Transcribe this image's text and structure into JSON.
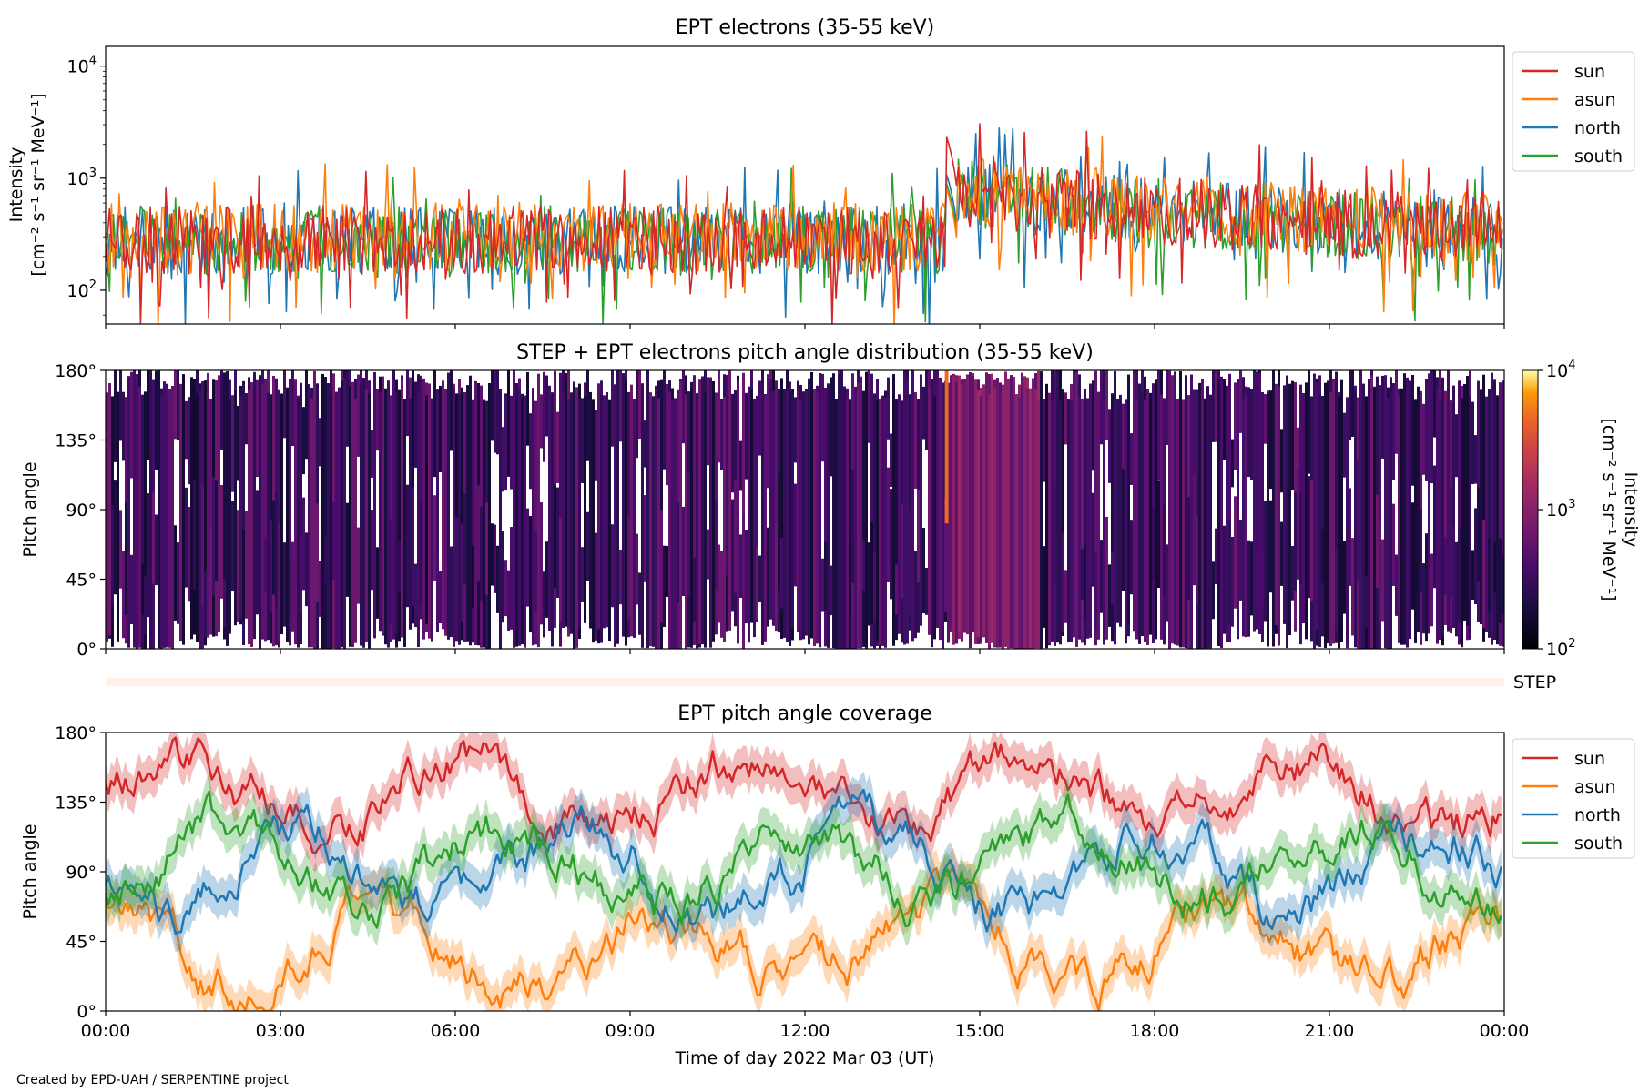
{
  "figure": {
    "footer": "Created by EPD-UAH / SERPENTINE project",
    "xlabel": "Time of day 2022 Mar 03 (UT)",
    "x_ticks": [
      "00:00",
      "03:00",
      "06:00",
      "09:00",
      "12:00",
      "15:00",
      "18:00",
      "21:00",
      "00:00"
    ]
  },
  "colors": {
    "sun": "#d62728",
    "asun": "#ff7f0e",
    "north": "#1f77b4",
    "south": "#2ca02c"
  },
  "chart_data": [
    {
      "type": "line",
      "title": "EPT electrons (35-55 keV)",
      "ylabel": "Intensity",
      "yunit": "[cm⁻² s⁻¹ sr⁻¹ MeV⁻¹]",
      "yscale": "log",
      "ylim": [
        50,
        15000
      ],
      "y_ticks": [
        100,
        1000,
        10000
      ],
      "y_tick_labels": {
        "base": "10",
        "exponents": [
          "2",
          "3",
          "4"
        ]
      },
      "xlim_hours": [
        0,
        24
      ],
      "legend": {
        "position": "outside-right",
        "entries": [
          "sun",
          "asun",
          "north",
          "south"
        ]
      },
      "series": [
        {
          "name": "sun",
          "baseline": 280,
          "spread": 0.28,
          "event": {
            "start_h": 14.4,
            "peak": 2600
          }
        },
        {
          "name": "asun",
          "baseline": 300,
          "spread": 0.28,
          "event": {
            "start_h": 14.4,
            "peak": 900
          }
        },
        {
          "name": "north",
          "baseline": 280,
          "spread": 0.28,
          "event": {
            "start_h": 14.4,
            "peak": 1200
          }
        },
        {
          "name": "south",
          "baseline": 280,
          "spread": 0.28,
          "event": {
            "start_h": 14.4,
            "peak": 1000
          }
        }
      ]
    },
    {
      "type": "heatmap",
      "title": "STEP + EPT electrons pitch angle distribution (35-55 keV)",
      "ylabel": "Pitch angle",
      "ylim": [
        0,
        180
      ],
      "y_ticks": [
        "0°",
        "45°",
        "90°",
        "135°",
        "180°"
      ],
      "colorbar": {
        "label": "Intensity",
        "unit": "[cm⁻² s⁻¹ sr⁻¹ MeV⁻¹]",
        "scale": "log",
        "range": [
          100,
          10000
        ],
        "tick_exponents": [
          "2",
          "3",
          "4"
        ],
        "colormap": "inferno"
      },
      "typical_intensity": 200,
      "event_intensity": {
        "start_h": 14.4,
        "end_h": 16.0,
        "value": 700
      },
      "xlim_hours": [
        0,
        24
      ]
    },
    {
      "type": "bar",
      "label": "STEP",
      "xlim_hours": [
        0,
        24
      ]
    },
    {
      "type": "line",
      "title": "EPT pitch angle coverage",
      "ylabel": "Pitch angle",
      "ylim": [
        0,
        180
      ],
      "y_ticks": [
        "0°",
        "45°",
        "90°",
        "135°",
        "180°"
      ],
      "xlim_hours": [
        0,
        24
      ],
      "legend": {
        "position": "outside-right",
        "entries": [
          "sun",
          "asun",
          "north",
          "south"
        ]
      },
      "series": [
        {
          "name": "sun",
          "mean": 140,
          "amp": 30,
          "band": 12
        },
        {
          "name": "asun",
          "mean": 40,
          "amp": 30,
          "band": 12
        },
        {
          "name": "north",
          "mean": 90,
          "amp": 35,
          "band": 12
        },
        {
          "name": "south",
          "mean": 95,
          "amp": 30,
          "band": 12
        }
      ]
    }
  ]
}
